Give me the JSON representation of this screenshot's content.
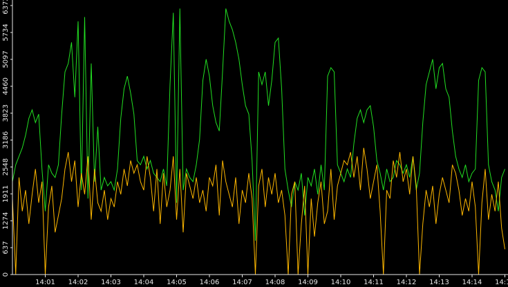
{
  "chart_data": {
    "type": "line",
    "categories": [
      null,
      null,
      null,
      null,
      null,
      null,
      null,
      null,
      null,
      null,
      "14:01",
      null,
      null,
      null,
      null,
      null,
      null,
      null,
      null,
      null,
      "14:02",
      null,
      null,
      null,
      null,
      null,
      null,
      null,
      null,
      null,
      "14:03",
      null,
      null,
      null,
      null,
      null,
      null,
      null,
      null,
      null,
      "14:04",
      null,
      null,
      null,
      null,
      null,
      null,
      null,
      null,
      null,
      "14:05",
      null,
      null,
      null,
      null,
      null,
      null,
      null,
      null,
      null,
      "14:06",
      null,
      null,
      null,
      null,
      null,
      null,
      null,
      null,
      null,
      "14:07",
      null,
      null,
      null,
      null,
      null,
      null,
      null,
      null,
      null,
      "14:08",
      null,
      null,
      null,
      null,
      null,
      null,
      null,
      null,
      null,
      "14:09",
      null,
      null,
      null,
      null,
      null,
      null,
      null,
      null,
      null,
      "14:10",
      null,
      null,
      null,
      null,
      null,
      null,
      null,
      null,
      null,
      "14:11",
      null,
      null,
      null,
      null,
      null,
      null,
      null,
      null,
      null,
      "14:12",
      null,
      null,
      null,
      null,
      null,
      null,
      null,
      null,
      null,
      "14:13",
      null,
      null,
      null,
      null,
      null,
      null,
      null,
      null,
      null,
      "14:14",
      null,
      null,
      null,
      null,
      null,
      null,
      null,
      null,
      null,
      "14:15"
    ],
    "series": [
      {
        "color": "#22e022",
        "values": [
          2200,
          2600,
          2800,
          3000,
          3300,
          3700,
          3900,
          3600,
          3800,
          2500,
          1500,
          2600,
          2400,
          2300,
          2600,
          3800,
          4800,
          5000,
          5500,
          4200,
          6000,
          2000,
          6100,
          1800,
          5000,
          2200,
          3500,
          2000,
          2300,
          2100,
          2200,
          2000,
          2500,
          3700,
          4400,
          4700,
          4300,
          3800,
          2700,
          2600,
          2800,
          2500,
          2700,
          2400,
          2300,
          2200,
          2500,
          2100,
          4500,
          6200,
          1700,
          6300,
          2000,
          2500,
          2300,
          2200,
          2600,
          3200,
          4600,
          5100,
          4700,
          4000,
          3600,
          3400,
          4800,
          6300,
          6000,
          5800,
          5500,
          5100,
          4500,
          4000,
          3800,
          2700,
          800,
          4800,
          4500,
          4800,
          4000,
          4600,
          5500,
          5600,
          4400,
          2500,
          2000,
          1600,
          2200,
          2000,
          2400,
          1400,
          2300,
          2100,
          2500,
          1900,
          2600,
          2000,
          4700,
          4900,
          4800,
          2600,
          2400,
          2200,
          2500,
          2300,
          3100,
          3700,
          3900,
          3600,
          3900,
          4000,
          3500,
          2700,
          2400,
          2000,
          2500,
          2200,
          2300,
          2700,
          2600,
          2400,
          2600,
          2300,
          2800,
          2000,
          2400,
          3600,
          4500,
          4800,
          5100,
          4400,
          4900,
          5000,
          4400,
          4200,
          3400,
          2800,
          2500,
          2300,
          2600,
          2200,
          2400,
          2500,
          4600,
          4900,
          4800,
          2600,
          2200,
          2000,
          1500,
          2300,
          2500
        ]
      },
      {
        "color": "#ffb800",
        "values": [
          1800,
          0,
          2300,
          1500,
          2000,
          1200,
          1900,
          2500,
          1700,
          2200,
          0,
          1600,
          2100,
          1000,
          1400,
          1800,
          2500,
          2900,
          2200,
          2700,
          1600,
          2400,
          1900,
          2800,
          1300,
          2500,
          1700,
          1500,
          2000,
          1300,
          1800,
          1600,
          2200,
          1900,
          2500,
          2100,
          2700,
          2400,
          2600,
          2200,
          2000,
          2800,
          2300,
          1500,
          2500,
          1200,
          2400,
          1600,
          2000,
          2800,
          1300,
          2500,
          1000,
          2400,
          2100,
          1800,
          2300,
          1700,
          2000,
          1500,
          2300,
          2100,
          2600,
          1400,
          2700,
          2200,
          1900,
          1600,
          2300,
          1200,
          2000,
          1700,
          2400,
          1800,
          0,
          2100,
          2500,
          1600,
          2300,
          1900,
          2400,
          1700,
          2000,
          1400,
          0,
          1900,
          2200,
          0,
          1200,
          2100,
          0,
          1800,
          900,
          1700,
          2200,
          1200,
          1500,
          2500,
          1300,
          2100,
          2400,
          2700,
          2600,
          2900,
          2300,
          2800,
          2000,
          3000,
          2500,
          1800,
          2200,
          2600,
          1500,
          0,
          2000,
          1800,
          2700,
          2300,
          2900,
          2200,
          2500,
          1900,
          2800,
          2100,
          0,
          1200,
          2000,
          1600,
          2100,
          1200,
          1900,
          2300,
          2000,
          1700,
          2600,
          2400,
          2000,
          1400,
          1800,
          1500,
          2200,
          1600,
          0,
          1700,
          2500,
          1300,
          1900,
          1500,
          2200,
          1100,
          600
        ]
      }
    ],
    "ylim": [
      0,
      6372
    ],
    "yticks": [
      0,
      637,
      1274,
      1911,
      2548,
      3186,
      3823,
      4460,
      5097,
      5734,
      6372
    ]
  }
}
